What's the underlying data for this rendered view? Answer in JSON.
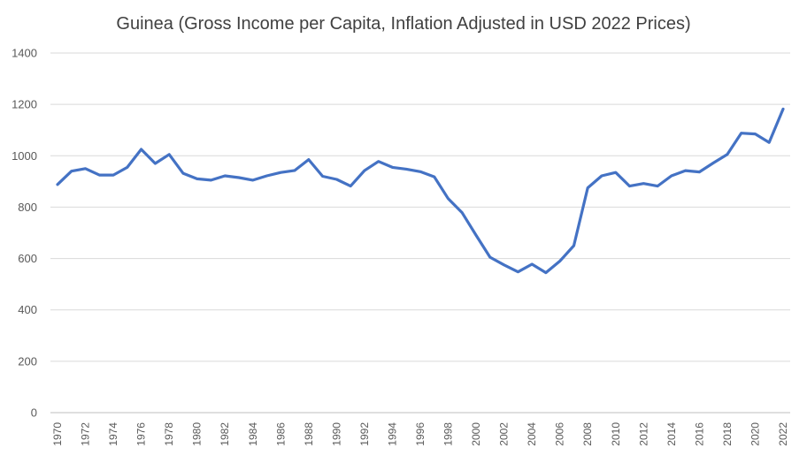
{
  "chart_data": {
    "type": "line",
    "title": "Guinea (Gross Income per Capita, Inflation Adjusted in USD 2022 Prices)",
    "xlabel": "",
    "ylabel": "",
    "ylim": [
      0,
      1400
    ],
    "yticks": [
      0,
      200,
      400,
      600,
      800,
      1000,
      1200,
      1400
    ],
    "grid": true,
    "legend": "none",
    "line_color": "#4472c4",
    "x": [
      1970,
      1971,
      1972,
      1973,
      1974,
      1975,
      1976,
      1977,
      1978,
      1979,
      1980,
      1981,
      1982,
      1983,
      1984,
      1985,
      1986,
      1987,
      1988,
      1989,
      1990,
      1991,
      1992,
      1993,
      1994,
      1995,
      1996,
      1997,
      1998,
      1999,
      2000,
      2001,
      2002,
      2003,
      2004,
      2005,
      2006,
      2007,
      2008,
      2009,
      2010,
      2011,
      2012,
      2013,
      2014,
      2015,
      2016,
      2017,
      2018,
      2019,
      2020,
      2021,
      2022
    ],
    "xticklabels": [
      "1970",
      "1972",
      "1974",
      "1976",
      "1978",
      "1980",
      "1982",
      "1984",
      "1986",
      "1988",
      "1990",
      "1992",
      "1994",
      "1996",
      "1998",
      "2000",
      "2002",
      "2004",
      "2006",
      "2008",
      "2010",
      "2012",
      "2014",
      "2016",
      "2018",
      "2020",
      "2022"
    ],
    "series": [
      {
        "values": [
          888,
          940,
          950,
          925,
          925,
          955,
          1025,
          970,
          1005,
          932,
          910,
          905,
          922,
          915,
          905,
          922,
          935,
          943,
          985,
          920,
          908,
          882,
          942,
          978,
          955,
          948,
          938,
          918,
          833,
          778,
          690,
          605,
          575,
          548,
          578,
          545,
          590,
          650,
          875,
          922,
          935,
          882,
          892,
          882,
          922,
          942,
          937,
          972,
          1005,
          1088,
          1085,
          1052,
          1182
        ]
      }
    ]
  }
}
